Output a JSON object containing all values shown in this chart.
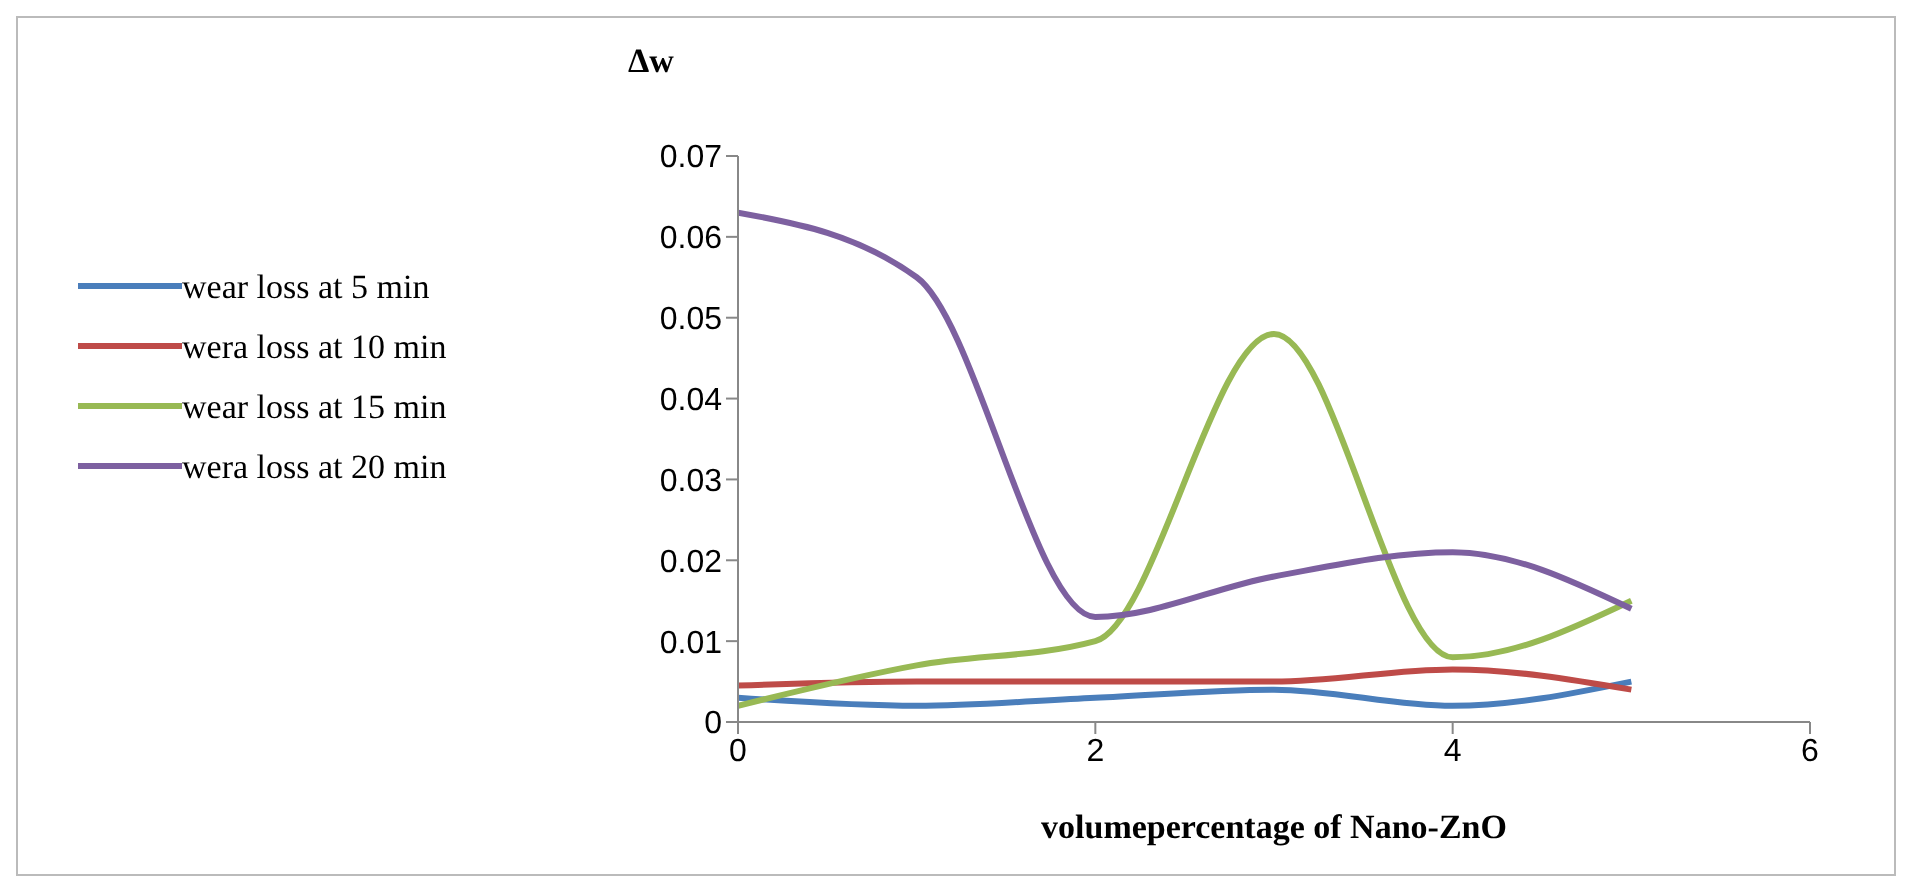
{
  "chart_data": {
    "type": "line",
    "ylabel": "Δw",
    "xlabel": "volumepercentage of Nano-ZnO",
    "x": [
      0,
      1,
      2,
      3,
      4,
      5
    ],
    "series": [
      {
        "name": "wear loss at 5 min",
        "color": "#4a7ebb",
        "values": [
          0.003,
          0.002,
          0.003,
          0.004,
          0.002,
          0.005
        ]
      },
      {
        "name": "wera loss at 10 min",
        "color": "#be4b48",
        "values": [
          0.0045,
          0.005,
          0.005,
          0.005,
          0.0065,
          0.004
        ]
      },
      {
        "name": "wear loss at 15 min",
        "color": "#98b954",
        "values": [
          0.002,
          0.007,
          0.01,
          0.048,
          0.008,
          0.015
        ]
      },
      {
        "name": "wera loss at 20 min",
        "color": "#7d60a0",
        "values": [
          0.063,
          0.055,
          0.013,
          0.018,
          0.021,
          0.014
        ]
      }
    ],
    "xlim": [
      0,
      6
    ],
    "xticks": [
      0,
      2,
      4,
      6
    ],
    "ylim": [
      0,
      0.07
    ],
    "yticks": [
      0,
      0.01,
      0.02,
      0.03,
      0.04,
      0.05,
      0.06,
      0.07
    ],
    "grid": false,
    "legend": "left",
    "marker": "none",
    "line_style": "solid"
  }
}
